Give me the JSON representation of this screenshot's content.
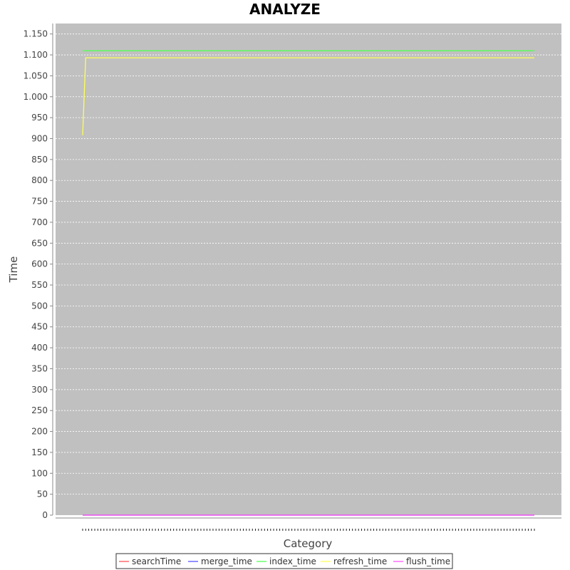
{
  "chart_data": {
    "type": "line",
    "title": "ANALYZE",
    "xlabel": "Category",
    "ylabel": "Time",
    "ylim": [
      0,
      1175
    ],
    "y_ticks": [
      0,
      50,
      100,
      150,
      200,
      250,
      300,
      350,
      400,
      450,
      500,
      550,
      600,
      650,
      700,
      750,
      800,
      850,
      900,
      950,
      1000,
      1050,
      1100,
      1150
    ],
    "y_tick_labels": [
      "0",
      "50",
      "100",
      "150",
      "200",
      "250",
      "300",
      "350",
      "400",
      "450",
      "500",
      "550",
      "600",
      "650",
      "700",
      "750",
      "800",
      "850",
      "900",
      "950",
      "1.000",
      "1.050",
      "1.100",
      "1.150"
    ],
    "grid": true,
    "plot_background": "#c0c0c0",
    "category_count": 150,
    "legend_position": "bottom",
    "series": [
      {
        "name": "searchTime",
        "color": "#ff5555",
        "first": 0,
        "rest": 0
      },
      {
        "name": "merge_time",
        "color": "#5555ff",
        "first": 0,
        "rest": 0
      },
      {
        "name": "index_time",
        "color": "#55ff55",
        "first": 1110,
        "rest": 1110
      },
      {
        "name": "refresh_time",
        "color": "#ffff55",
        "first": 908,
        "rest": 1093
      },
      {
        "name": "flush_time",
        "color": "#ff55ff",
        "first": 0,
        "rest": 0
      }
    ]
  }
}
